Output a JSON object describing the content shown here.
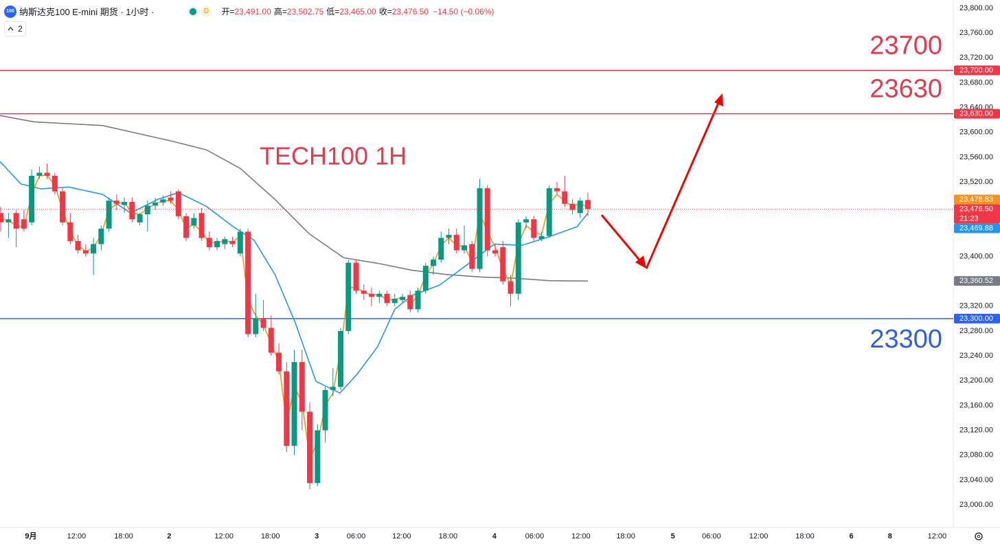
{
  "header": {
    "badge": "100",
    "symbol": "纳斯达克100 E-mini 期货 · 1小时 ·",
    "session": "D",
    "ohlc": [
      {
        "key": "开=",
        "value": "23,491.00"
      },
      {
        "key": "高=",
        "value": "23,502.75"
      },
      {
        "key": "低=",
        "value": "23,465.00"
      },
      {
        "key": "收=",
        "value": "23,476.50"
      }
    ],
    "change": "−14.50 (−0.06%)",
    "indicators": "2"
  },
  "chart_data": {
    "type": "candlestick",
    "title": "TECH100 1H",
    "up_color": "#089981",
    "down_color": "#f23645",
    "open": [
      23470,
      23455,
      23470,
      23460,
      23455,
      23530,
      23535,
      23530,
      23505,
      23455,
      23425,
      23410,
      23405,
      23420,
      23445,
      23490,
      23483,
      23488,
      23455,
      23468,
      23482,
      23487,
      23495,
      23505,
      23465,
      23450,
      23470,
      23430,
      23415,
      23420,
      23425,
      23405,
      23440,
      23275,
      23300,
      23285,
      23245,
      23215,
      23095,
      23230,
      23150,
      23035,
      23120,
      23185,
      23190,
      23280,
      23390,
      23345,
      23340,
      23335,
      23340,
      23325,
      23330,
      23338,
      23315,
      23345,
      23385,
      23395,
      23430,
      23435,
      23410,
      23420,
      23380,
      23510,
      23410,
      23415,
      23360,
      23340,
      23455,
      23460,
      23428,
      23433,
      23510,
      23505,
      23485,
      23470,
      23491
    ],
    "high": [
      23480,
      23470,
      23475,
      23475,
      23540,
      23545,
      23550,
      23535,
      23510,
      23470,
      23435,
      23420,
      23430,
      23450,
      23495,
      23500,
      23495,
      23495,
      23470,
      23490,
      23495,
      23498,
      23505,
      23508,
      23470,
      23470,
      23478,
      23440,
      23430,
      23432,
      23432,
      23445,
      23445,
      23340,
      23330,
      23305,
      23260,
      23230,
      23250,
      23250,
      23165,
      23130,
      23190,
      23220,
      23285,
      23395,
      23395,
      23355,
      23350,
      23345,
      23345,
      23340,
      23340,
      23345,
      23350,
      23390,
      23400,
      23440,
      23445,
      23445,
      23450,
      23425,
      23525,
      23515,
      23420,
      23425,
      23370,
      23460,
      23465,
      23465,
      23440,
      23515,
      23520,
      23530,
      23492,
      23495,
      23502.75
    ],
    "low": [
      23440,
      23430,
      23415,
      23440,
      23450,
      23525,
      23525,
      23500,
      23450,
      23420,
      23405,
      23400,
      23370,
      23410,
      23440,
      23475,
      23470,
      23455,
      23450,
      23440,
      23475,
      23482,
      23485,
      23460,
      23425,
      23445,
      23425,
      23410,
      23410,
      23412,
      23415,
      23400,
      23270,
      23270,
      23280,
      23240,
      23210,
      23085,
      23080,
      23120,
      23025,
      23030,
      23100,
      23175,
      23185,
      23275,
      23340,
      23330,
      23320,
      23325,
      23320,
      23320,
      23325,
      23310,
      23310,
      23340,
      23370,
      23390,
      23420,
      23405,
      23405,
      23375,
      23375,
      23400,
      23400,
      23355,
      23320,
      23330,
      23445,
      23425,
      23425,
      23430,
      23500,
      23480,
      23468,
      23462,
      23465
    ],
    "close": [
      23455,
      23460,
      23445,
      23445,
      23530,
      23535,
      23530,
      23505,
      23455,
      23425,
      23410,
      23405,
      23420,
      23445,
      23490,
      23485,
      23488,
      23460,
      23468,
      23482,
      23487,
      23492,
      23490,
      23465,
      23430,
      23462,
      23430,
      23415,
      23425,
      23428,
      23420,
      23440,
      23275,
      23300,
      23285,
      23245,
      23215,
      23095,
      23230,
      23150,
      23035,
      23120,
      23185,
      23190,
      23280,
      23390,
      23345,
      23340,
      23335,
      23340,
      23325,
      23332,
      23335,
      23315,
      23345,
      23385,
      23395,
      23430,
      23435,
      23410,
      23418,
      23380,
      23510,
      23410,
      23405,
      23360,
      23340,
      23455,
      23460,
      23430,
      23433,
      23510,
      23505,
      23485,
      23475,
      23490,
      23476.5
    ],
    "overlays": [
      {
        "color": "#787b86",
        "x": [
          -0.1,
          4.3,
          13.2,
          22.1,
          26.6,
          31.0,
          35.5,
          39.9,
          44.4,
          48.8,
          53.2,
          57.7,
          62.1,
          66.6,
          71.0,
          76
        ],
        "values": [
          23627,
          23617,
          23611,
          23586,
          23572,
          23542,
          23492,
          23437,
          23398,
          23389,
          23378,
          23371,
          23367,
          23365,
          23361,
          23360.52
        ]
      },
      {
        "color": "#2196f3",
        "x": [
          -0.1,
          2.6,
          5.2,
          8.8,
          13.2,
          16.8,
          20.3,
          23.0,
          26.6,
          30.1,
          32.8,
          35.5,
          38.1,
          40.8,
          43.9,
          46.1,
          48.8,
          51.0,
          53.2,
          56.8,
          60.4,
          63.9,
          67.5,
          71.0,
          74.6,
          76
        ],
        "values": [
          23553,
          23517,
          23509,
          23512,
          23500,
          23470,
          23492,
          23503,
          23481,
          23448,
          23426,
          23371,
          23294,
          23199,
          23180,
          23210,
          23255,
          23315,
          23337,
          23354,
          23387,
          23420,
          23418,
          23432,
          23448,
          23469.88
        ]
      },
      {
        "color": "#f7931a",
        "values": [
          23460,
          23458,
          23450,
          23447,
          23500,
          23530,
          23531,
          23515,
          23475,
          23440,
          23418,
          23408,
          23414,
          23435,
          23475,
          23485,
          23487,
          23470,
          23468,
          23477,
          23485,
          23490,
          23490,
          23475,
          23445,
          23452,
          23440,
          23422,
          23422,
          23426,
          23422,
          23434,
          23330,
          23305,
          23290,
          23260,
          23230,
          23130,
          23190,
          23165,
          23075,
          23100,
          23160,
          23180,
          23250,
          23350,
          23350,
          23343,
          23338,
          23339,
          23330,
          23331,
          23334,
          23322,
          23337,
          23370,
          23388,
          23418,
          23430,
          23418,
          23416,
          23392,
          23470,
          23440,
          23415,
          23380,
          23355,
          23420,
          23450,
          23440,
          23435,
          23485,
          23500,
          23490,
          23480,
          23486,
          23478.83
        ]
      }
    ],
    "xlim": [
      -0.1,
      123.3
    ],
    "xticks": [
      {
        "value": 3.9,
        "label": "9月"
      },
      {
        "value": 9.8,
        "label": "12:00"
      },
      {
        "value": 15.9,
        "label": "18:00"
      },
      {
        "value": 21.8,
        "label": "2"
      },
      {
        "value": 28.9,
        "label": "12:00"
      },
      {
        "value": 34.9,
        "label": "18:00"
      },
      {
        "value": 40.9,
        "label": "3"
      },
      {
        "value": 46.0,
        "label": "06:00"
      },
      {
        "value": 51.9,
        "label": "12:00"
      },
      {
        "value": 57.9,
        "label": "18:00"
      },
      {
        "value": 63.9,
        "label": "4"
      },
      {
        "value": 69.1,
        "label": "06:00"
      },
      {
        "value": 75.1,
        "label": "12:00"
      },
      {
        "value": 80.9,
        "label": "18:00"
      },
      {
        "value": 87.0,
        "label": "5"
      },
      {
        "value": 92.0,
        "label": "06:00"
      },
      {
        "value": 98.1,
        "label": "12:00"
      },
      {
        "value": 104.1,
        "label": "18:00"
      },
      {
        "value": 110.1,
        "label": "6"
      },
      {
        "value": 115.1,
        "label": "8"
      },
      {
        "value": 121.2,
        "label": "12:00"
      }
    ],
    "ylim": [
      23000,
      23800
    ],
    "yticks": [
      {
        "value": 23000,
        "label": "23,000.00"
      },
      {
        "value": 23040,
        "label": "23,040.00"
      },
      {
        "value": 23080,
        "label": "23,080.00"
      },
      {
        "value": 23120,
        "label": "23,120.00"
      },
      {
        "value": 23160,
        "label": "23,160.00"
      },
      {
        "value": 23200,
        "label": "23,200.00"
      },
      {
        "value": 23240,
        "label": "23,240.00"
      },
      {
        "value": 23280,
        "label": "23,280.00"
      },
      {
        "value": 23320,
        "label": "23,320.00"
      },
      {
        "value": 23400,
        "label": "23,400.00"
      },
      {
        "value": 23520,
        "label": "23,520.00"
      },
      {
        "value": 23560,
        "label": "23,560.00"
      },
      {
        "value": 23600,
        "label": "23,600.00"
      },
      {
        "value": 23640,
        "label": "23,640.00"
      },
      {
        "value": 23680,
        "label": "23,680.00"
      },
      {
        "value": 23720,
        "label": "23,720.00"
      },
      {
        "value": 23760,
        "label": "23,760.00"
      },
      {
        "value": 23800,
        "label": "23,800.00"
      }
    ],
    "levels": [
      {
        "value": 23700,
        "label": "23,700.00",
        "color": "#f23645"
      },
      {
        "value": 23630,
        "label": "23,630.00",
        "color": "#f23645"
      },
      {
        "value": 23300,
        "label": "23,300.00",
        "color": "#2962ff"
      }
    ],
    "current": {
      "value": 23476.5,
      "label": "23,476.50",
      "countdown": "21:23",
      "color": "#f23645"
    },
    "price_tags": [
      {
        "value": 23478.83,
        "label": "23,478.83",
        "color": "#f7931a"
      },
      {
        "value": 23469.88,
        "label": "23,469.88",
        "color": "#2196f3"
      },
      {
        "value": 23360.52,
        "label": "23,360.52",
        "color": "#787b86"
      }
    ]
  }
}
